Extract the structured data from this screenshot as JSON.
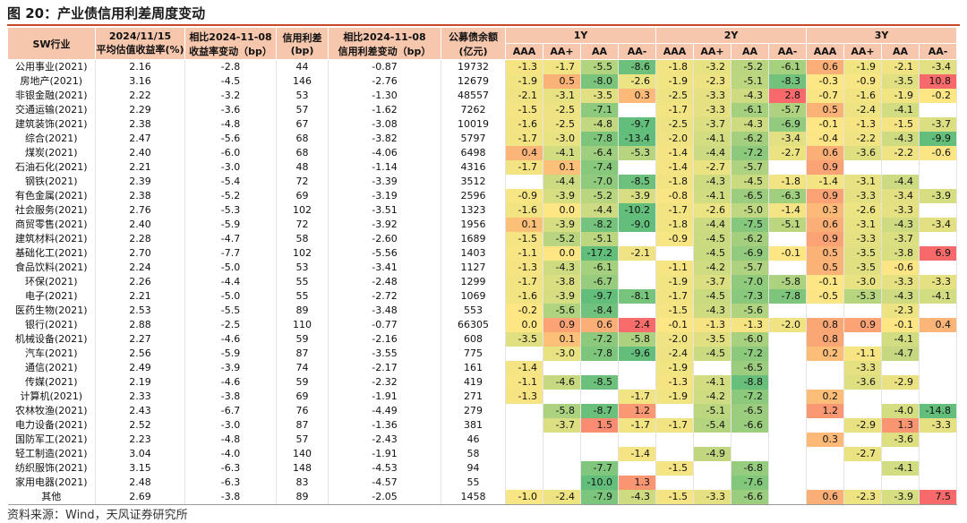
{
  "title": "图 20：产业债信用利差周度变动",
  "source": "资料来源：Wind，天风证券研究所",
  "header": {
    "industry": "SW行业",
    "yield_line1": "2024/11/15",
    "yield_line2": "平均估值收益率(%)",
    "ychg_line1": "相比2024-11-08",
    "ychg_line2": "收益率变动（bp）",
    "spread_line1": "信用利差",
    "spread_line2": "(bp)",
    "schg_line1": "相比2024-11-08",
    "schg_line2": "信用利差变动（bp）",
    "bal_line1": "公募债余额",
    "bal_line2": "(亿元)",
    "groups": [
      "1Y",
      "2Y",
      "3Y"
    ],
    "ratings": [
      "AAA",
      "AA+",
      "AA",
      "AA-"
    ]
  },
  "colors": {
    "header_bg": "#f6c7ad",
    "accent_red": "#c9472d"
  },
  "rows": [
    {
      "industry": "公用事业(2021)",
      "yield": "2.16",
      "ychg": "-2.8",
      "spread": "44",
      "schg": "-0.87",
      "balance": "19732",
      "cells": [
        "-1.3",
        "-1.7",
        "-5.5",
        "-8.6",
        "-1.8",
        "-3.2",
        "-5.2",
        "-6.1",
        "0.6",
        "-1.9",
        "-2.1",
        "-3.4"
      ]
    },
    {
      "industry": "房地产(2021)",
      "yield": "3.16",
      "ychg": "-4.5",
      "spread": "146",
      "schg": "-2.76",
      "balance": "12679",
      "cells": [
        "-1.9",
        "0.5",
        "-8.0",
        "-2.6",
        "-1.9",
        "-2.3",
        "-5.1",
        "-8.3",
        "-0.3",
        "-0.9",
        "-3.5",
        "10.8"
      ]
    },
    {
      "industry": "非银金融(2021)",
      "yield": "2.22",
      "ychg": "-3.2",
      "spread": "53",
      "schg": "-1.30",
      "balance": "48557",
      "cells": [
        "-2.1",
        "-3.1",
        "-3.5",
        "0.3",
        "-2.5",
        "-3.3",
        "-4.3",
        "2.8",
        "-0.7",
        "-1.6",
        "-1.9",
        "-0.2"
      ]
    },
    {
      "industry": "交通运输(2021)",
      "yield": "2.29",
      "ychg": "-3.6",
      "spread": "57",
      "schg": "-1.62",
      "balance": "7262",
      "cells": [
        "-1.5",
        "-2.5",
        "-7.1",
        "",
        "-1.7",
        "-3.3",
        "-6.1",
        "-5.7",
        "0.5",
        "-2.4",
        "-4.1",
        ""
      ]
    },
    {
      "industry": "建筑装饰(2021)",
      "yield": "2.38",
      "ychg": "-4.8",
      "spread": "67",
      "schg": "-3.08",
      "balance": "10019",
      "cells": [
        "-1.6",
        "-2.5",
        "-4.8",
        "-9.7",
        "-2.5",
        "-3.7",
        "-4.3",
        "-6.9",
        "-0.1",
        "-1.3",
        "-1.5",
        "-3.7"
      ]
    },
    {
      "industry": "综合(2021)",
      "yield": "2.47",
      "ychg": "-5.6",
      "spread": "68",
      "schg": "-3.82",
      "balance": "5797",
      "cells": [
        "-1.7",
        "-3.0",
        "-7.8",
        "-13.4",
        "-2.0",
        "-4.1",
        "-6.2",
        "-3.4",
        "-0.4",
        "-2.2",
        "-4.3",
        "-9.9"
      ]
    },
    {
      "industry": "煤炭(2021)",
      "yield": "2.40",
      "ychg": "-6.0",
      "spread": "68",
      "schg": "-4.06",
      "balance": "6498",
      "cells": [
        "0.4",
        "-4.1",
        "-6.4",
        "-5.3",
        "-1.4",
        "-4.4",
        "-7.2",
        "-2.7",
        "0.6",
        "-3.6",
        "-2.2",
        "-0.6"
      ]
    },
    {
      "industry": "石油石化(2021)",
      "yield": "2.21",
      "ychg": "-3.0",
      "spread": "48",
      "schg": "-1.14",
      "balance": "4316",
      "cells": [
        "-1.7",
        "0.1",
        "-7.4",
        "",
        "-1.4",
        "-2.7",
        "-5.7",
        "",
        "0.9",
        "",
        "",
        ""
      ]
    },
    {
      "industry": "钢铁(2021)",
      "yield": "2.39",
      "ychg": "-5.4",
      "spread": "72",
      "schg": "-3.39",
      "balance": "3512",
      "cells": [
        "",
        "-4.4",
        "-7.0",
        "-8.5",
        "-1.8",
        "-4.3",
        "-4.5",
        "-1.8",
        "-1.4",
        "-3.1",
        "-4.4",
        ""
      ]
    },
    {
      "industry": "有色金属(2021)",
      "yield": "2.38",
      "ychg": "-5.2",
      "spread": "69",
      "schg": "-3.19",
      "balance": "2596",
      "cells": [
        "-0.9",
        "-3.9",
        "-5.2",
        "-3.9",
        "-0.8",
        "-4.1",
        "-6.5",
        "-6.3",
        "0.9",
        "-3.3",
        "-3.4",
        "-3.9"
      ]
    },
    {
      "industry": "社会服务(2021)",
      "yield": "2.76",
      "ychg": "-5.3",
      "spread": "102",
      "schg": "-3.51",
      "balance": "1323",
      "cells": [
        "-1.6",
        "0.0",
        "-4.4",
        "-10.2",
        "-1.7",
        "-2.6",
        "-5.0",
        "-1.4",
        "0.3",
        "-2.6",
        "-3.3",
        ""
      ]
    },
    {
      "industry": "商贸零售(2021)",
      "yield": "2.40",
      "ychg": "-5.9",
      "spread": "72",
      "schg": "-3.92",
      "balance": "1956",
      "cells": [
        "0.1",
        "-3.9",
        "-8.2",
        "-9.0",
        "-1.8",
        "-4.4",
        "-7.5",
        "-5.1",
        "0.6",
        "-3.1",
        "-4.3",
        "-3.4"
      ]
    },
    {
      "industry": "建筑材料(2021)",
      "yield": "2.28",
      "ychg": "-4.7",
      "spread": "58",
      "schg": "-2.60",
      "balance": "1689",
      "cells": [
        "-1.5",
        "-5.2",
        "-5.1",
        "",
        "-0.9",
        "-4.5",
        "-6.2",
        "",
        "0.9",
        "-3.3",
        "-3.7",
        ""
      ]
    },
    {
      "industry": "基础化工(2021)",
      "yield": "2.70",
      "ychg": "-7.7",
      "spread": "102",
      "schg": "-5.56",
      "balance": "1403",
      "cells": [
        "-1.1",
        "0.0",
        "-17.2",
        "-2.1",
        "",
        "-4.5",
        "-6.9",
        "-0.1",
        "0.5",
        "-3.5",
        "-3.8",
        "6.9"
      ]
    },
    {
      "industry": "食品饮料(2021)",
      "yield": "2.24",
      "ychg": "-5.0",
      "spread": "53",
      "schg": "-3.41",
      "balance": "1127",
      "cells": [
        "-1.3",
        "-4.3",
        "-6.1",
        "",
        "-1.1",
        "-4.2",
        "-5.7",
        "",
        "0.5",
        "-3.5",
        "-0.6",
        ""
      ]
    },
    {
      "industry": "环保(2021)",
      "yield": "2.26",
      "ychg": "-4.4",
      "spread": "55",
      "schg": "-2.48",
      "balance": "1299",
      "cells": [
        "-1.7",
        "-3.8",
        "-6.7",
        "",
        "-1.9",
        "-3.7",
        "-7.0",
        "-5.8",
        "-0.1",
        "-3.0",
        "-3.3",
        "-3.3"
      ]
    },
    {
      "industry": "电子(2021)",
      "yield": "2.21",
      "ychg": "-5.0",
      "spread": "55",
      "schg": "-2.72",
      "balance": "1069",
      "cells": [
        "-1.6",
        "-3.9",
        "-9.7",
        "-8.1",
        "-1.7",
        "-4.5",
        "-7.3",
        "-7.8",
        "-0.5",
        "-5.3",
        "-4.3",
        "-4.1"
      ]
    },
    {
      "industry": "医药生物(2021)",
      "yield": "2.53",
      "ychg": "-5.5",
      "spread": "89",
      "schg": "-3.48",
      "balance": "553",
      "cells": [
        "-0.2",
        "-5.6",
        "-8.4",
        "",
        "-1.5",
        "-4.3",
        "-5.6",
        "",
        "",
        "",
        "-2.3",
        ""
      ]
    },
    {
      "industry": "银行(2021)",
      "yield": "2.88",
      "ychg": "-2.5",
      "spread": "110",
      "schg": "-0.77",
      "balance": "66305",
      "cells": [
        "0.0",
        "0.9",
        "0.6",
        "2.4",
        "-0.1",
        "-1.3",
        "-1.3",
        "-2.0",
        "0.8",
        "0.9",
        "-0.1",
        "0.4"
      ]
    },
    {
      "industry": "机械设备(2021)",
      "yield": "2.27",
      "ychg": "-4.6",
      "spread": "59",
      "schg": "-2.16",
      "balance": "608",
      "cells": [
        "-3.5",
        "0.1",
        "-7.2",
        "-5.8",
        "-2.0",
        "-3.5",
        "-6.0",
        "",
        "0.8",
        "",
        "-4.1",
        ""
      ]
    },
    {
      "industry": "汽车(2021)",
      "yield": "2.56",
      "ychg": "-5.9",
      "spread": "87",
      "schg": "-3.55",
      "balance": "775",
      "cells": [
        "",
        "-3.0",
        "-7.8",
        "-9.6",
        "-2.4",
        "-4.5",
        "-7.2",
        "",
        "0.2",
        "-1.1",
        "-4.7",
        ""
      ]
    },
    {
      "industry": "通信(2021)",
      "yield": "2.49",
      "ychg": "-3.9",
      "spread": "74",
      "schg": "-2.17",
      "balance": "161",
      "cells": [
        "-1.4",
        "",
        "",
        "",
        "-1.9",
        "",
        "-6.5",
        "",
        "",
        "-3.3",
        "",
        ""
      ]
    },
    {
      "industry": "传媒(2021)",
      "yield": "2.19",
      "ychg": "-4.6",
      "spread": "59",
      "schg": "-2.32",
      "balance": "419",
      "cells": [
        "-1.1",
        "-4.6",
        "-8.5",
        "",
        "-1.3",
        "-4.1",
        "-8.8",
        "",
        "",
        "-3.6",
        "-2.9",
        ""
      ]
    },
    {
      "industry": "计算机(2021)",
      "yield": "2.33",
      "ychg": "-3.8",
      "spread": "69",
      "schg": "-1.91",
      "balance": "271",
      "cells": [
        "-1.3",
        "",
        "",
        "-1.7",
        "-1.9",
        "-4.2",
        "-7.2",
        "",
        "0.2",
        "",
        "",
        ""
      ]
    },
    {
      "industry": "农林牧渔(2021)",
      "yield": "2.43",
      "ychg": "-6.7",
      "spread": "76",
      "schg": "-4.49",
      "balance": "279",
      "cells": [
        "",
        "-5.8",
        "-8.7",
        "1.2",
        "",
        "-5.1",
        "-6.5",
        "",
        "1.2",
        "",
        "-4.0",
        "-14.8"
      ]
    },
    {
      "industry": "电力设备(2021)",
      "yield": "2.52",
      "ychg": "-3.0",
      "spread": "87",
      "schg": "-1.36",
      "balance": "381",
      "cells": [
        "",
        "-3.7",
        "1.5",
        "-1.7",
        "-1.7",
        "-5.4",
        "-6.6",
        "",
        "",
        "-2.9",
        "1.3",
        "-3.3"
      ]
    },
    {
      "industry": "国防军工(2021)",
      "yield": "2.23",
      "ychg": "-4.8",
      "spread": "57",
      "schg": "-2.43",
      "balance": "46",
      "cells": [
        "",
        "",
        "",
        "",
        "",
        "",
        "",
        "",
        "0.3",
        "",
        "-3.6",
        ""
      ]
    },
    {
      "industry": "轻工制造(2021)",
      "yield": "3.04",
      "ychg": "-4.0",
      "spread": "140",
      "schg": "-1.91",
      "balance": "58",
      "cells": [
        "",
        "",
        "",
        "-1.4",
        "",
        "-4.9",
        "",
        "",
        "",
        "-2.7",
        "",
        ""
      ]
    },
    {
      "industry": "纺织服饰(2021)",
      "yield": "3.15",
      "ychg": "-6.3",
      "spread": "148",
      "schg": "-4.53",
      "balance": "94",
      "cells": [
        "",
        "",
        "-7.7",
        "",
        "-1.5",
        "",
        "-6.8",
        "",
        "",
        "",
        "-4.1",
        ""
      ]
    },
    {
      "industry": "家用电器(2021)",
      "yield": "2.48",
      "ychg": "-6.3",
      "spread": "83",
      "schg": "-4.57",
      "balance": "55",
      "cells": [
        "",
        "",
        "-10.0",
        "1.3",
        "",
        "",
        "-7.6",
        "",
        "",
        "",
        "",
        ""
      ]
    },
    {
      "industry": "其他",
      "yield": "2.69",
      "ychg": "-3.8",
      "spread": "89",
      "schg": "-2.05",
      "balance": "1458",
      "cells": [
        "-1.0",
        "-2.4",
        "-7.9",
        "-4.3",
        "-1.5",
        "-3.3",
        "-6.6",
        "",
        "0.6",
        "-2.3",
        "-3.9",
        "7.5"
      ]
    }
  ]
}
